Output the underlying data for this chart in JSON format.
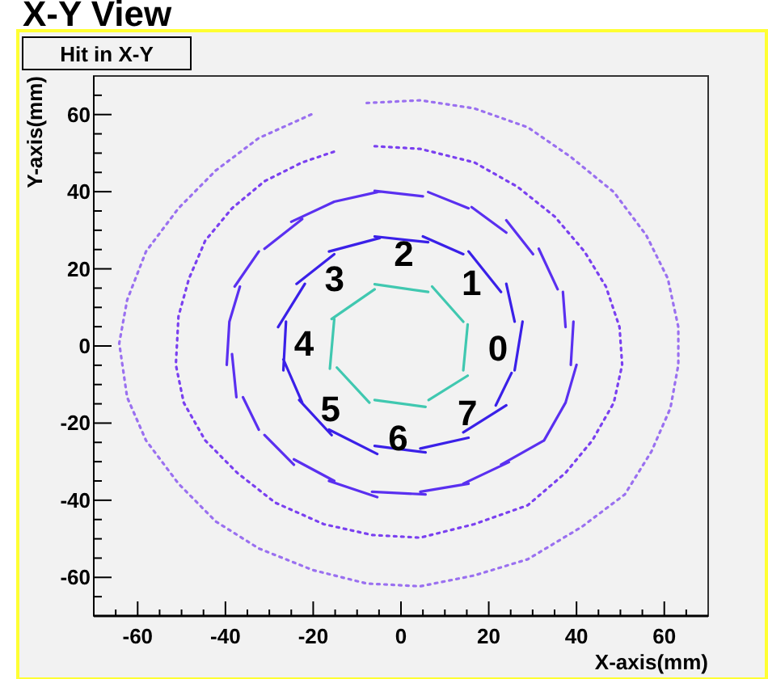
{
  "chart_data": {
    "type": "line",
    "title": "X-Y View",
    "subtitle": "Hit in X-Y",
    "xlabel": "X-axis(mm)",
    "ylabel": "Y-axis(mm)",
    "xlim": [
      -70,
      70
    ],
    "ylim": [
      -70,
      70
    ],
    "xticks": [
      {
        "value": -65,
        "label": null
      },
      -60,
      {
        "value": -55,
        "label": null
      },
      {
        "value": -50,
        "label": null
      },
      {
        "value": -45,
        "label": null
      },
      -40,
      {
        "value": -35,
        "label": null
      },
      {
        "value": -30,
        "label": null
      },
      {
        "value": -25,
        "label": null
      },
      -20,
      {
        "value": -15,
        "label": null
      },
      {
        "value": -10,
        "label": null
      },
      {
        "value": -5,
        "label": null
      },
      0,
      {
        "value": 5,
        "label": null
      },
      {
        "value": 10,
        "label": null
      },
      {
        "value": 15,
        "label": null
      },
      20,
      {
        "value": 25,
        "label": null
      },
      {
        "value": 30,
        "label": null
      },
      {
        "value": 35,
        "label": null
      },
      40,
      {
        "value": 45,
        "label": null
      },
      {
        "value": 50,
        "label": null
      },
      {
        "value": 55,
        "label": null
      },
      60,
      {
        "value": 65,
        "label": null
      }
    ],
    "yticks": [
      {
        "value": -65,
        "label": null
      },
      -60,
      {
        "value": -55,
        "label": null
      },
      {
        "value": -50,
        "label": null
      },
      {
        "value": -45,
        "label": null
      },
      -40,
      {
        "value": -35,
        "label": null
      },
      {
        "value": -30,
        "label": null
      },
      {
        "value": -25,
        "label": null
      },
      -20,
      {
        "value": -15,
        "label": null
      },
      {
        "value": -10,
        "label": null
      },
      {
        "value": -5,
        "label": null
      },
      0,
      {
        "value": 5,
        "label": null
      },
      {
        "value": 10,
        "label": null
      },
      {
        "value": 15,
        "label": null
      },
      20,
      {
        "value": 25,
        "label": null
      },
      {
        "value": 30,
        "label": null
      },
      {
        "value": 35,
        "label": null
      },
      40,
      {
        "value": 45,
        "label": null
      },
      {
        "value": 50,
        "label": null
      },
      {
        "value": 55,
        "label": null
      },
      60,
      {
        "value": 65,
        "label": null
      }
    ],
    "grid": false,
    "marker": "none",
    "series": [
      {
        "color": "#40c8b0",
        "line_style": "solid",
        "x": [
          -6,
          6.2,
          null,
          7.1,
          14.2,
          null,
          15.2,
          14.2,
          null,
          15.2,
          6.3,
          null,
          5.6,
          -6,
          null,
          -7.2,
          -14.6,
          null,
          -16.2,
          -15.2,
          null,
          -15.8,
          -6
        ],
        "values": [
          16,
          14,
          null,
          15.4,
          6.3,
          null,
          5.6,
          -6.3,
          null,
          -7.7,
          -14,
          null,
          -15.8,
          -14,
          null,
          -14.7,
          -5.6,
          null,
          -5.9,
          7,
          null,
          7,
          14.7
        ]
      },
      {
        "color": "#3a20e8",
        "line_style": "solid",
        "x": [
          -6,
          6.2,
          null,
          5,
          14.2,
          null,
          15.4,
          22.8,
          null,
          24,
          25.9,
          null,
          27.7,
          25.9,
          null,
          25.2,
          21.6,
          null,
          24,
          14.2,
          null,
          15.4,
          4.4,
          null,
          5.6,
          -6,
          null,
          -5.4,
          -16.4,
          null,
          -15.8,
          -23.2,
          null,
          -22.5,
          -26.8,
          null,
          -26.8,
          -26.2,
          null,
          -28,
          -21.9,
          null,
          -23.8,
          -15.2,
          null,
          -16.4,
          -4.8
        ],
        "values": [
          28.4,
          26.9,
          null,
          28.4,
          23.8,
          null,
          24.5,
          14,
          null,
          16.1,
          6.3,
          null,
          6.3,
          -6.3,
          null,
          -7,
          -15.4,
          null,
          -15.4,
          -22.4,
          null,
          -23.8,
          -26.6,
          null,
          -27.6,
          -25.9,
          null,
          -28,
          -21.7,
          null,
          -23.1,
          -14,
          null,
          -14.7,
          -3.5,
          null,
          -6.3,
          6.3,
          null,
          4.9,
          16.1,
          null,
          16.1,
          23.8,
          null,
          24.5,
          28
        ]
      },
      {
        "color": "#5a30f0",
        "line_style": "solid",
        "x": [
          -6,
          5,
          null,
          6.2,
          15.4,
          null,
          16.1,
          24,
          null,
          24,
          30.1,
          null,
          31.4,
          35.7,
          null,
          36.9,
          37.5,
          null,
          39.3,
          38.7,
          null,
          40,
          37.5,
          null,
          37.5,
          32.6,
          null,
          32.6,
          22.8,
          null,
          24.6,
          14.2,
          null,
          15.4,
          4.4,
          null,
          5.6,
          -6.6,
          null,
          -5.4,
          -16.4,
          null,
          -15.2,
          -24.4,
          null,
          -24.4,
          -31.1,
          null,
          -32.4,
          -36,
          null,
          -37.5,
          -38.5,
          null,
          -39.7,
          -39.1,
          null,
          -39.1,
          -36.7,
          null,
          -37.9,
          -32.4,
          null,
          -31.1,
          -22.5,
          null,
          -25,
          -15.2,
          null,
          -15.2,
          -5.4
        ],
        "values": [
          40.2,
          38.8,
          null,
          39.9,
          35.7,
          null,
          36,
          29.4,
          null,
          32.6,
          23.8,
          null,
          25.2,
          14.7,
          null,
          14,
          4.9,
          null,
          6.3,
          -4.9,
          null,
          -4.9,
          -14.7,
          null,
          -14.7,
          -24.5,
          null,
          -24.5,
          -30.8,
          null,
          -30.1,
          -35.7,
          null,
          -35.7,
          -37.8,
          null,
          -38.5,
          -37.8,
          null,
          -39.2,
          -35,
          null,
          -35,
          -29.4,
          null,
          -30.8,
          -23.1,
          null,
          -21.7,
          -13.3,
          null,
          -13.3,
          -2.1,
          null,
          -4.9,
          6.3,
          null,
          6.3,
          15.4,
          null,
          15.4,
          24.5,
          null,
          25.2,
          32.9,
          null,
          32.2,
          37.4,
          null,
          37.4,
          39.9
        ]
      },
      {
        "color": "#7a40f0",
        "line_style": "dotted",
        "x": [
          -6,
          4.4,
          16.7,
          26.5,
          35,
          41.8,
          46.7,
          49.8,
          50.4,
          48.5,
          43.6,
          37.5,
          28.9,
          16.7,
          4.4,
          -6.6,
          -17.6,
          -28.7,
          -37.3,
          -44.6,
          -49.5,
          -51.3,
          -50.7,
          -48.3,
          -44.6,
          -38.5,
          -31.1,
          -22.5,
          -15.2
        ],
        "values": [
          51.8,
          51.1,
          47.6,
          41.3,
          33.6,
          24.5,
          15.4,
          4.9,
          -4.9,
          -14.7,
          -24.5,
          -32.9,
          -41.3,
          -46.2,
          -49.7,
          -49,
          -46.2,
          -40.6,
          -32.9,
          -24.5,
          -14.7,
          -4.9,
          7.7,
          17.5,
          27.3,
          35.7,
          42.7,
          47.6,
          50.4
        ]
      },
      {
        "color": "#9a70f0",
        "line_style": "dotted",
        "x": [
          -7.8,
          4.4,
          16.7,
          28.9,
          38.7,
          48.5,
          55.9,
          60.8,
          63.2,
          63.2,
          61.4,
          57.1,
          51,
          41.2,
          28.9,
          16.7,
          4.4,
          -7.8,
          -20.1,
          -32.4,
          -42.2,
          -50.7,
          -58.1,
          -62.4,
          -64.2,
          -62.4,
          -58.1,
          -50.7,
          -42.2,
          -32.4,
          -20.1
        ],
        "values": [
          63,
          63.7,
          61.6,
          56.7,
          49,
          39.9,
          28.7,
          17.5,
          4.9,
          -4.9,
          -16.1,
          -27.3,
          -38.5,
          -46.9,
          -55.3,
          -59.5,
          -62.3,
          -61.6,
          -58.1,
          -52.5,
          -45.5,
          -35.7,
          -24.5,
          -13.3,
          0.7,
          11.9,
          24.5,
          35.7,
          45.5,
          53.9,
          60.2
        ]
      }
    ],
    "annotations": [
      "0",
      "1",
      "2",
      "3",
      "4",
      "5",
      "6",
      "7"
    ]
  }
}
